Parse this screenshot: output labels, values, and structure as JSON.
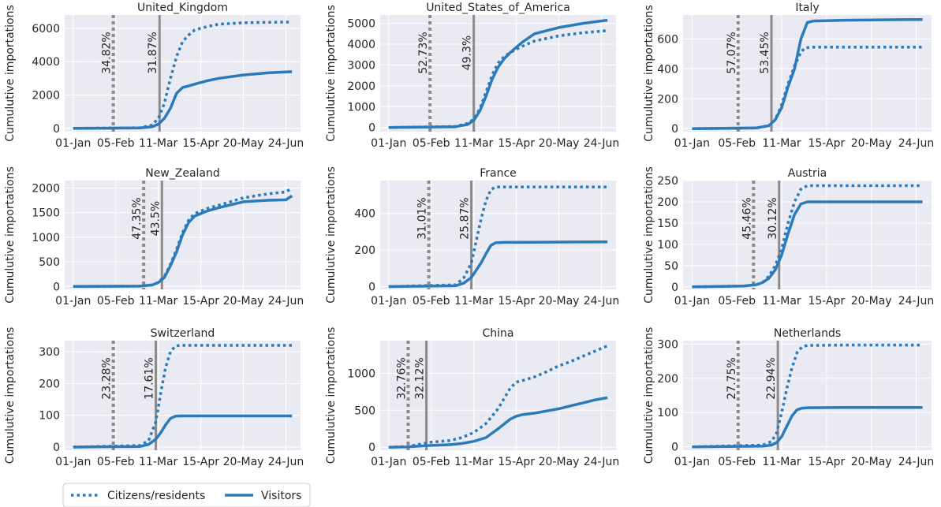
{
  "legend": {
    "items": [
      {
        "label": "Citizens/residents",
        "style": "dotted"
      },
      {
        "label": "Visitors",
        "style": "solid"
      }
    ],
    "placement": "bottom-left"
  },
  "colors": {
    "series": "#2b7bba",
    "vline": "#8a8a8a",
    "plot_bg": "#eaeaf2",
    "grid": "#ffffff"
  },
  "chart_data": [
    {
      "type": "line",
      "title": "United_Kingdom",
      "ylabel": "Cumulutive importations",
      "xticks": [
        0,
        35,
        70,
        105,
        140,
        175
      ],
      "xtick_labels": [
        "01-Jan",
        "05-Feb",
        "11-Mar",
        "15-Apr",
        "20-May",
        "24-Jun"
      ],
      "xlim": [
        -7,
        187
      ],
      "ylim": [
        -200,
        6800
      ],
      "yticks": [
        0,
        2000,
        4000,
        6000
      ],
      "vlines": [
        {
          "x": 33,
          "style": "dotted",
          "label": "34.82%"
        },
        {
          "x": 71,
          "style": "solid",
          "label": "31.87%"
        }
      ],
      "series": [
        {
          "name": "Citizens/residents",
          "style": "dotted",
          "x": [
            0,
            55,
            65,
            70,
            75,
            80,
            85,
            90,
            95,
            100,
            110,
            120,
            140,
            160,
            180
          ],
          "y": [
            0,
            30,
            200,
            600,
            1500,
            3000,
            4300,
            5200,
            5600,
            5900,
            6100,
            6250,
            6330,
            6360,
            6380
          ]
        },
        {
          "name": "Visitors",
          "style": "solid",
          "x": [
            0,
            55,
            65,
            70,
            75,
            80,
            85,
            90,
            95,
            100,
            110,
            120,
            140,
            160,
            180
          ],
          "y": [
            0,
            20,
            100,
            250,
            600,
            1200,
            2100,
            2450,
            2550,
            2650,
            2850,
            3000,
            3200,
            3330,
            3400
          ]
        }
      ]
    },
    {
      "type": "line",
      "title": "United_States_of_America",
      "ylabel": "Cumulutive importations",
      "xticks": [
        0,
        35,
        70,
        105,
        140,
        175
      ],
      "xtick_labels": [
        "01-Jan",
        "05-Feb",
        "11-Mar",
        "15-Apr",
        "20-May",
        "24-Jun"
      ],
      "xlim": [
        -7,
        187
      ],
      "ylim": [
        -200,
        5400
      ],
      "yticks": [
        0,
        1000,
        2000,
        3000,
        4000,
        5000
      ],
      "vlines": [
        {
          "x": 34,
          "style": "dotted",
          "label": "52.73%"
        },
        {
          "x": 70,
          "style": "solid",
          "label": "49.3%"
        }
      ],
      "series": [
        {
          "name": "Citizens/residents",
          "style": "dotted",
          "x": [
            0,
            55,
            65,
            70,
            75,
            80,
            85,
            90,
            95,
            100,
            110,
            120,
            140,
            160,
            180
          ],
          "y": [
            0,
            50,
            200,
            400,
            900,
            1700,
            2500,
            3100,
            3400,
            3600,
            3900,
            4150,
            4400,
            4550,
            4650
          ]
        },
        {
          "name": "Visitors",
          "style": "solid",
          "x": [
            0,
            55,
            65,
            70,
            75,
            80,
            85,
            90,
            95,
            100,
            110,
            120,
            140,
            160,
            180
          ],
          "y": [
            0,
            40,
            150,
            350,
            800,
            1500,
            2300,
            2900,
            3300,
            3600,
            4100,
            4500,
            4800,
            5000,
            5150
          ]
        }
      ]
    },
    {
      "type": "line",
      "title": "Italy",
      "ylabel": "Cumulutive importations",
      "xticks": [
        0,
        35,
        70,
        105,
        140,
        175
      ],
      "xtick_labels": [
        "01-Jan",
        "05-Feb",
        "11-Mar",
        "15-Apr",
        "20-May",
        "24-Jun"
      ],
      "xlim": [
        -7,
        187
      ],
      "ylim": [
        -20,
        760
      ],
      "yticks": [
        0,
        200,
        400,
        600
      ],
      "vlines": [
        {
          "x": 36,
          "style": "dotted",
          "label": "57.07%"
        },
        {
          "x": 62,
          "style": "solid",
          "label": "53.45%"
        }
      ],
      "series": [
        {
          "name": "Citizens/residents",
          "style": "dotted",
          "x": [
            0,
            50,
            60,
            65,
            70,
            75,
            80,
            85,
            88,
            95,
            120,
            150,
            180
          ],
          "y": [
            0,
            5,
            20,
            60,
            160,
            300,
            420,
            510,
            540,
            545,
            545,
            545,
            545
          ]
        },
        {
          "name": "Visitors",
          "style": "solid",
          "x": [
            0,
            50,
            60,
            65,
            70,
            75,
            80,
            85,
            90,
            95,
            120,
            150,
            180
          ],
          "y": [
            0,
            5,
            20,
            60,
            140,
            280,
            400,
            600,
            710,
            720,
            725,
            728,
            730
          ]
        }
      ]
    },
    {
      "type": "line",
      "title": "New_Zealand",
      "ylabel": "Cumulutive importations",
      "xticks": [
        0,
        35,
        70,
        105,
        140,
        175
      ],
      "xtick_labels": [
        "01-Jan",
        "05-Feb",
        "11-Mar",
        "15-Apr",
        "20-May",
        "24-Jun"
      ],
      "xlim": [
        -7,
        187
      ],
      "ylim": [
        -60,
        2150
      ],
      "yticks": [
        0,
        500,
        1000,
        1500,
        2000
      ],
      "vlines": [
        {
          "x": 58,
          "style": "dotted",
          "label": "47.35%"
        },
        {
          "x": 73,
          "style": "solid",
          "label": "43.5%"
        }
      ],
      "series": [
        {
          "name": "Citizens/residents",
          "style": "dotted",
          "x": [
            0,
            55,
            65,
            70,
            75,
            80,
            85,
            90,
            95,
            100,
            110,
            120,
            140,
            160,
            175,
            180
          ],
          "y": [
            0,
            5,
            30,
            80,
            200,
            450,
            750,
            1100,
            1350,
            1480,
            1580,
            1650,
            1800,
            1880,
            1920,
            2000
          ]
        },
        {
          "name": "Visitors",
          "style": "solid",
          "x": [
            0,
            55,
            65,
            70,
            75,
            80,
            85,
            90,
            95,
            100,
            110,
            120,
            140,
            160,
            175,
            180
          ],
          "y": [
            0,
            5,
            30,
            80,
            180,
            420,
            700,
            1050,
            1300,
            1430,
            1530,
            1600,
            1720,
            1750,
            1760,
            1840
          ]
        }
      ]
    },
    {
      "type": "line",
      "title": "France",
      "ylabel": "Cumulutive importations",
      "xticks": [
        0,
        35,
        70,
        105,
        140,
        175
      ],
      "xtick_labels": [
        "01-Jan",
        "05-Feb",
        "11-Mar",
        "15-Apr",
        "20-May",
        "24-Jun"
      ],
      "xlim": [
        -7,
        187
      ],
      "ylim": [
        -15,
        580
      ],
      "yticks": [
        0,
        200,
        400
      ],
      "vlines": [
        {
          "x": 33,
          "style": "dotted",
          "label": "31.01%"
        },
        {
          "x": 68,
          "style": "solid",
          "label": "25.87%"
        }
      ],
      "series": [
        {
          "name": "Citizens/residents",
          "style": "dotted",
          "x": [
            0,
            55,
            62,
            68,
            72,
            76,
            80,
            84,
            88,
            95,
            120,
            150,
            180
          ],
          "y": [
            0,
            10,
            50,
            130,
            250,
            370,
            470,
            530,
            545,
            545,
            545,
            545,
            545
          ]
        },
        {
          "name": "Visitors",
          "style": "solid",
          "x": [
            0,
            55,
            62,
            68,
            72,
            76,
            80,
            84,
            88,
            95,
            120,
            150,
            180
          ],
          "y": [
            0,
            5,
            20,
            50,
            90,
            130,
            180,
            225,
            240,
            242,
            243,
            244,
            245
          ]
        }
      ]
    },
    {
      "type": "line",
      "title": "Austria",
      "ylabel": "Cumulutive importations",
      "xticks": [
        0,
        35,
        70,
        105,
        140,
        175
      ],
      "xtick_labels": [
        "01-Jan",
        "05-Feb",
        "11-Mar",
        "15-Apr",
        "20-May",
        "24-Jun"
      ],
      "xlim": [
        -7,
        187
      ],
      "ylim": [
        -6,
        250
      ],
      "yticks": [
        0,
        50,
        100,
        150,
        200,
        250
      ],
      "vlines": [
        {
          "x": 48,
          "style": "dotted",
          "label": "45.46%"
        },
        {
          "x": 68,
          "style": "solid",
          "label": "30.12%"
        }
      ],
      "series": [
        {
          "name": "Citizens/residents",
          "style": "dotted",
          "x": [
            0,
            40,
            50,
            55,
            60,
            65,
            70,
            75,
            80,
            85,
            90,
            95,
            120,
            150,
            180
          ],
          "y": [
            0,
            2,
            5,
            10,
            25,
            50,
            90,
            150,
            200,
            230,
            238,
            238,
            238,
            238,
            238
          ]
        },
        {
          "name": "Visitors",
          "style": "solid",
          "x": [
            0,
            40,
            50,
            55,
            60,
            65,
            70,
            75,
            80,
            85,
            90,
            95,
            120,
            150,
            180
          ],
          "y": [
            0,
            2,
            5,
            10,
            20,
            40,
            75,
            125,
            170,
            195,
            200,
            200,
            200,
            200,
            200
          ]
        }
      ]
    },
    {
      "type": "line",
      "title": "Switzerland",
      "ylabel": "Cumulutive importations",
      "xticks": [
        0,
        35,
        70,
        105,
        140,
        175
      ],
      "xtick_labels": [
        "01-Jan",
        "05-Feb",
        "11-Mar",
        "15-Apr",
        "20-May",
        "24-Jun"
      ],
      "xlim": [
        -7,
        187
      ],
      "ylim": [
        -10,
        335
      ],
      "yticks": [
        0,
        100,
        200,
        300
      ],
      "vlines": [
        {
          "x": 33,
          "style": "dotted",
          "label": "23.28%"
        },
        {
          "x": 68,
          "style": "solid",
          "label": "17.61%"
        }
      ],
      "series": [
        {
          "name": "Citizens/residents",
          "style": "dotted",
          "x": [
            0,
            55,
            62,
            68,
            72,
            76,
            80,
            84,
            88,
            95,
            120,
            150,
            180
          ],
          "y": [
            0,
            5,
            20,
            80,
            170,
            250,
            300,
            318,
            320,
            320,
            320,
            320,
            320
          ]
        },
        {
          "name": "Visitors",
          "style": "solid",
          "x": [
            0,
            55,
            62,
            68,
            72,
            76,
            80,
            84,
            88,
            95,
            120,
            150,
            180
          ],
          "y": [
            0,
            2,
            8,
            25,
            45,
            70,
            90,
            97,
            98,
            98,
            98,
            98,
            98
          ]
        }
      ]
    },
    {
      "type": "line",
      "title": "China",
      "ylabel": "Cumulutive importations",
      "xticks": [
        0,
        35,
        70,
        105,
        140,
        175
      ],
      "xtick_labels": [
        "01-Jan",
        "05-Feb",
        "11-Mar",
        "15-Apr",
        "20-May",
        "24-Jun"
      ],
      "xlim": [
        -7,
        187
      ],
      "ylim": [
        -40,
        1440
      ],
      "yticks": [
        0,
        500,
        1000
      ],
      "vlines": [
        {
          "x": 16,
          "style": "dotted",
          "label": "32.76%"
        },
        {
          "x": 31,
          "style": "solid",
          "label": "32.12%"
        }
      ],
      "series": [
        {
          "name": "Citizens/residents",
          "style": "dotted",
          "x": [
            0,
            15,
            25,
            35,
            50,
            60,
            70,
            80,
            90,
            100,
            105,
            110,
            120,
            130,
            140,
            150,
            160,
            170,
            180
          ],
          "y": [
            0,
            10,
            40,
            70,
            90,
            130,
            200,
            320,
            520,
            800,
            880,
            900,
            950,
            1020,
            1100,
            1160,
            1230,
            1300,
            1370
          ]
        },
        {
          "name": "Visitors",
          "style": "solid",
          "x": [
            0,
            15,
            25,
            35,
            50,
            60,
            70,
            80,
            90,
            100,
            105,
            110,
            120,
            130,
            140,
            150,
            160,
            170,
            180
          ],
          "y": [
            0,
            5,
            15,
            25,
            35,
            50,
            80,
            130,
            250,
            380,
            420,
            440,
            460,
            490,
            520,
            560,
            600,
            640,
            670
          ]
        }
      ]
    },
    {
      "type": "line",
      "title": "Netherlands",
      "ylabel": "Cumulutive importations",
      "xticks": [
        0,
        35,
        70,
        105,
        140,
        175
      ],
      "xtick_labels": [
        "01-Jan",
        "05-Feb",
        "11-Mar",
        "15-Apr",
        "20-May",
        "24-Jun"
      ],
      "xlim": [
        -7,
        187
      ],
      "ylim": [
        -10,
        310
      ],
      "yticks": [
        0,
        100,
        200,
        300
      ],
      "vlines": [
        {
          "x": 36,
          "style": "dotted",
          "label": "27.75%"
        },
        {
          "x": 67,
          "style": "solid",
          "label": "22.94%"
        }
      ],
      "series": [
        {
          "name": "Citizens/residents",
          "style": "dotted",
          "x": [
            0,
            55,
            62,
            66,
            70,
            74,
            78,
            82,
            86,
            90,
            120,
            150,
            180
          ],
          "y": [
            0,
            5,
            15,
            40,
            100,
            170,
            230,
            275,
            292,
            296,
            297,
            297,
            297
          ]
        },
        {
          "name": "Visitors",
          "style": "solid",
          "x": [
            0,
            55,
            62,
            66,
            70,
            74,
            78,
            82,
            86,
            90,
            120,
            150,
            180
          ],
          "y": [
            0,
            2,
            5,
            12,
            30,
            60,
            90,
            108,
            113,
            114,
            115,
            115,
            115
          ]
        }
      ]
    }
  ]
}
